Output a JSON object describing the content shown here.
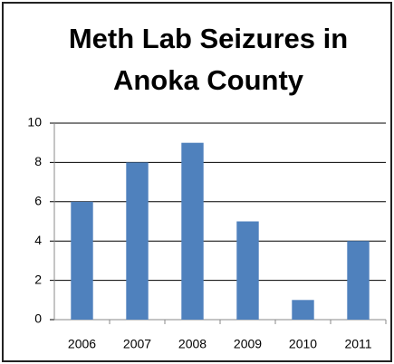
{
  "chart_data": {
    "type": "bar",
    "title": "Meth Lab Seizures in Anoka County",
    "categories": [
      "2006",
      "2007",
      "2008",
      "2009",
      "2010",
      "2011"
    ],
    "values": [
      6,
      8,
      9,
      5,
      1,
      4
    ],
    "color": "#4f81bd",
    "ylim": [
      0,
      10
    ],
    "yticks": [
      0,
      2,
      4,
      6,
      8,
      10
    ],
    "grid": true
  }
}
